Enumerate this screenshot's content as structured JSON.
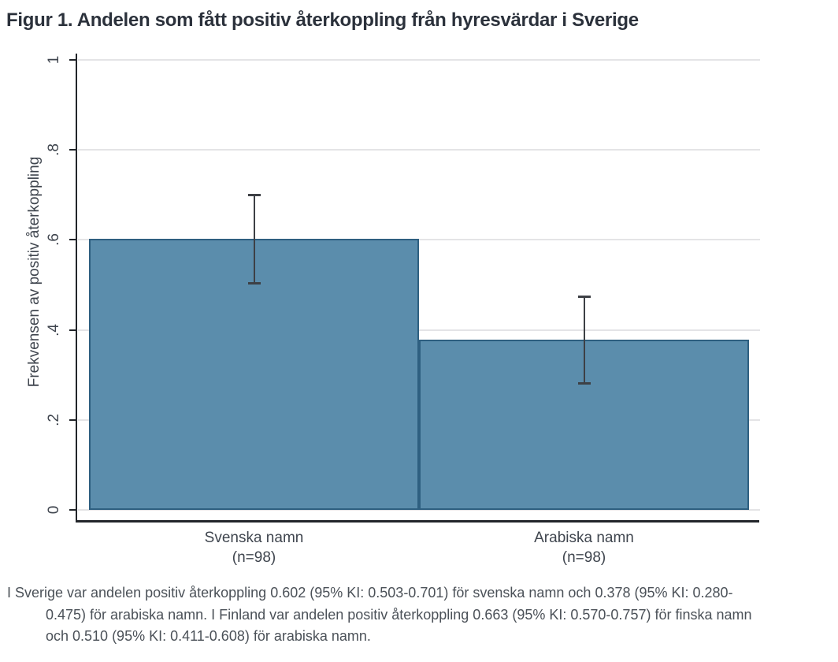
{
  "figure": {
    "title": "Figur 1. Andelen som fått positiv återkoppling från hyresvärdar i Sverige",
    "caption_lines": [
      "I Sverige var andelen positiv återkoppling 0.602 (95% KI: 0.503-0.701) för svenska namn och 0.378 (95% KI: 0.280-",
      "0.475) för arabiska namn. I Finland var andelen positiv återkoppling 0.663 (95% KI: 0.570-0.757) för finska namn",
      "och 0.510 (95% KI: 0.411-0.608) för arabiska namn."
    ]
  },
  "chart_data": {
    "type": "bar",
    "title": "Figur 1. Andelen som fått positiv återkoppling från hyresvärdar i Sverige",
    "xlabel": "",
    "ylabel": "Frekvensen av positiv återkoppling",
    "ylim": [
      0,
      1
    ],
    "yticks": [
      0,
      0.2,
      0.4,
      0.6,
      0.8,
      1
    ],
    "ytick_labels": [
      "0",
      ".2",
      ".4",
      ".6",
      ".8",
      "1"
    ],
    "grid": true,
    "legend": "none",
    "categories": [
      "Svenska namn",
      "Arabiska namn"
    ],
    "category_sublabels": [
      "(n=98)",
      "(n=98)"
    ],
    "values": [
      0.602,
      0.378
    ],
    "ci_low": [
      0.503,
      0.28
    ],
    "ci_high": [
      0.701,
      0.475
    ],
    "colors": {
      "bar_fill": "#5b8dac",
      "bar_border": "#2e5f80",
      "error_bar": "#3d4045",
      "axis": "#22252a",
      "gridline": "#e4e4e6",
      "title_text": "#2b313b",
      "label_text": "#3f454e",
      "caption_text": "#4b5158"
    }
  }
}
